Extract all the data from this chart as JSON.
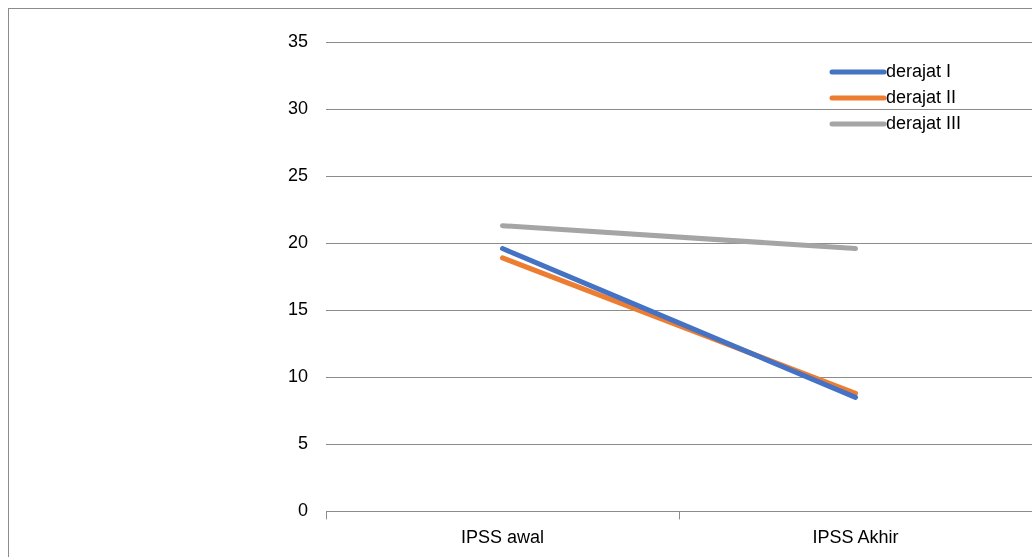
{
  "chart_data": {
    "type": "line",
    "categories": [
      "IPSS awal",
      "IPSS Akhir"
    ],
    "series": [
      {
        "name": "derajat I",
        "color": "#4472c4",
        "values": [
          19.6,
          8.5
        ]
      },
      {
        "name": "derajat II",
        "color": "#ed7d31",
        "values": [
          18.9,
          8.8
        ]
      },
      {
        "name": "derajat III",
        "color": "#a5a5a5",
        "values": [
          21.3,
          19.6
        ]
      }
    ],
    "ylim": [
      0,
      35
    ],
    "yticks": [
      0,
      5,
      10,
      15,
      20,
      25,
      30,
      35
    ],
    "grid": "y",
    "legend": "top right",
    "marker": "none",
    "line_style": "solid"
  }
}
